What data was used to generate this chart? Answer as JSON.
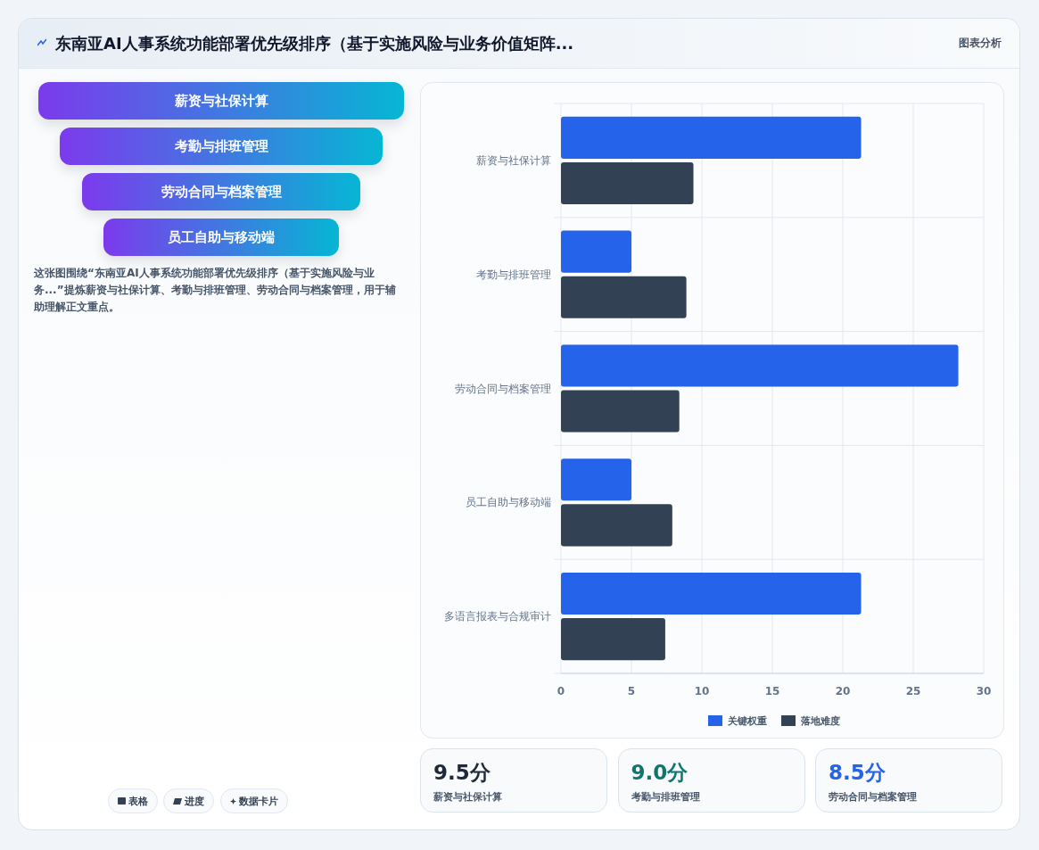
{
  "chart_data": [
    {
      "type": "bar",
      "orientation": "horizontal",
      "categories": [
        "薪资与社保计算",
        "考勤与排班管理",
        "劳动合同与档案管理",
        "员工自助与移动端",
        "多语言报表与合规审计"
      ],
      "series": [
        {
          "name": "关键权重",
          "color": "#2563eb",
          "values": [
            21.3,
            5.0,
            28.2,
            5.0,
            21.3
          ]
        },
        {
          "name": "落地难度",
          "color": "#334155",
          "values": [
            9.4,
            8.9,
            8.4,
            7.9,
            7.4
          ]
        }
      ],
      "xlim": [
        0,
        30
      ],
      "xticks": [
        0,
        5,
        10,
        15,
        20,
        25,
        30
      ],
      "grid": true,
      "legend": "bottom"
    },
    {
      "type": "other",
      "title": "东南亚AI人事系统功能部署优先级排序（基于实施风险与业务价值矩阵...",
      "annotations": [
        "图表分析"
      ]
    },
    {
      "type": "other",
      "categories": [
        "薪资与社保计算",
        "考勤与排班管理",
        "劳动合同与档案管理",
        "员工自助与移动端"
      ],
      "annotations": [
        "这张图围绕“东南亚AI人事系统功能部署优先级排序（基于实施风险与业务...”提炼薪资与社保计算、考勤与排班管理、劳动合同与档案管理，用于辅助理解正文重点。"
      ]
    },
    {
      "type": "other",
      "categories": [
        "薪资与社保计算",
        "考勤与排班管理",
        "劳动合同与档案管理"
      ],
      "value_labels": [
        "9.5分",
        "9.0分",
        "8.5分"
      ]
    },
    {
      "type": "other",
      "categories": [
        "表格",
        "进度",
        "数据卡片"
      ]
    }
  ]
}
